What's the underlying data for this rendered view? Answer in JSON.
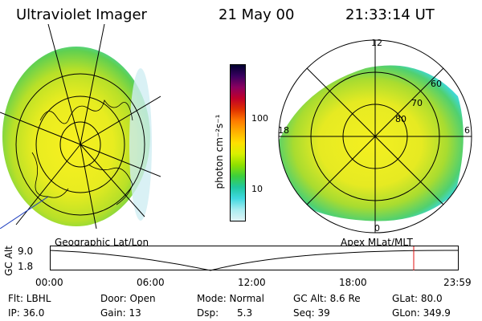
{
  "header": {
    "title": "Ultraviolet Imager",
    "date": "21 May 00",
    "time": "21:33:14 UT"
  },
  "left_panel": {
    "caption": "Geographic Lat/Lon"
  },
  "right_panel": {
    "caption": "Apex MLat/MLT",
    "mlt_labels": {
      "top": "12",
      "left": "18",
      "right": "6",
      "bottom": "0"
    },
    "mlat_labels": [
      "60",
      "70",
      "80"
    ]
  },
  "colorbar": {
    "unit_label": "photon cm⁻²s⁻¹",
    "ticks": [
      "100",
      "10"
    ],
    "colors": [
      "#000030",
      "#3a0060",
      "#8a0060",
      "#c0002a",
      "#e03000",
      "#ff7a00",
      "#ffb000",
      "#ffe000",
      "#d8f000",
      "#8ee000",
      "#3ccf3c",
      "#20c8a0",
      "#40d8e0",
      "#a8ecf0",
      "#e0f4f6"
    ]
  },
  "altitude_plot": {
    "ylabel": "GC Alt",
    "ymax": "9.0",
    "ymin": "1.8",
    "x_ticks": [
      "00:00",
      "06:00",
      "12:00",
      "18:00",
      "23:59"
    ],
    "current_time_fraction": 0.89
  },
  "status": {
    "flt": "Flt: LBHL",
    "door": "Door: Open",
    "mode": "Mode: Normal",
    "gc_alt": "GC Alt: 8.6 Re",
    "glat": "GLat:  80.0",
    "ip": "IP: 36.0",
    "gain": "Gain: 13",
    "dsp": "Dsp:      5.3",
    "seq": "Seq: 39",
    "glon": "GLon: 349.9"
  }
}
